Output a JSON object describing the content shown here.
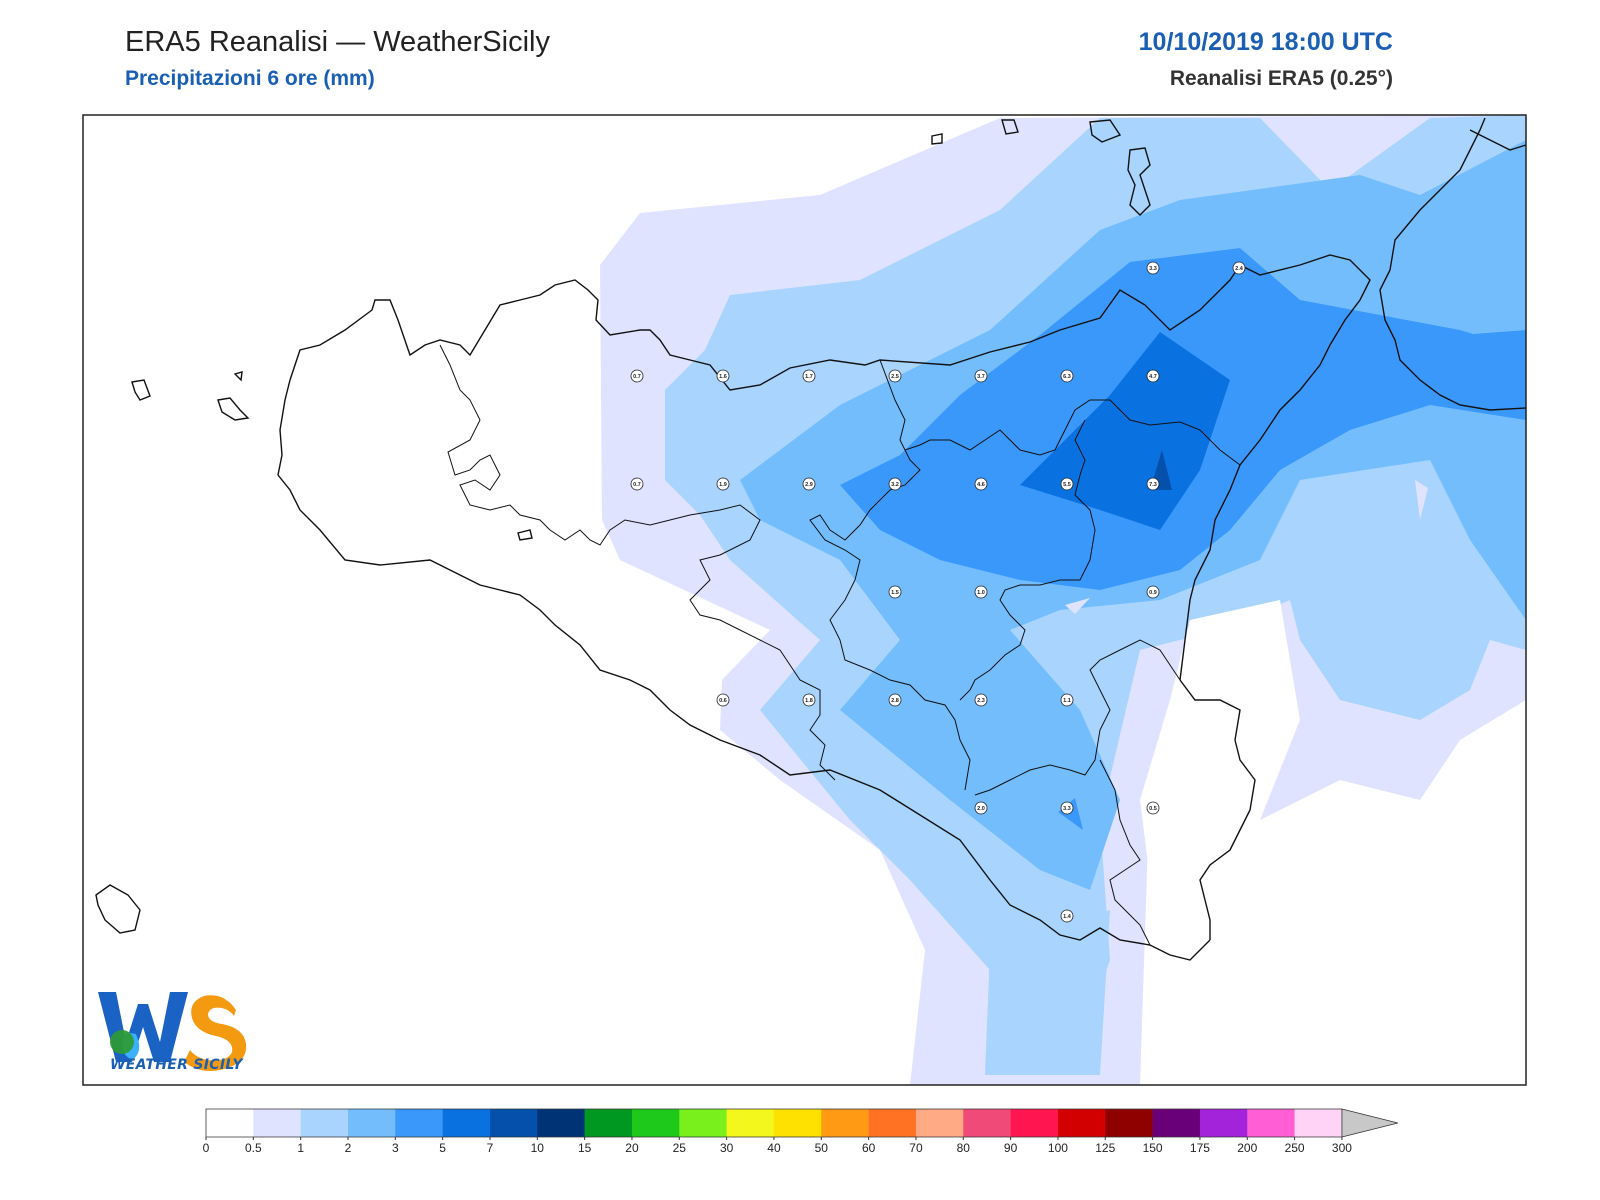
{
  "header": {
    "title": "ERA5 Reanalisi — WeatherSicily",
    "subtitle": "Precipitazioni 6 ore (mm)",
    "datetime": "10/10/2019 18:00 UTC",
    "model": "Reanalisi ERA5 (0.25°)"
  },
  "logo": {
    "text": "WEATHER SICILY"
  },
  "colorbar": {
    "levels": [
      "0",
      "0.5",
      "1",
      "2",
      "3",
      "5",
      "7",
      "10",
      "15",
      "20",
      "25",
      "30",
      "40",
      "50",
      "60",
      "70",
      "80",
      "90",
      "100",
      "125",
      "150",
      "175",
      "200",
      "250",
      "300"
    ],
    "colors": [
      "#ffffff",
      "#dfe3ff",
      "#a9d4fe",
      "#74bdfd",
      "#3a98fb",
      "#0a72e0",
      "#0550aa",
      "#003375",
      "#009821",
      "#1ec91c",
      "#79f01c",
      "#f4f71c",
      "#ffe100",
      "#ff9a15",
      "#ff7224",
      "#ffaa84",
      "#f04a78",
      "#ff1651",
      "#d20000",
      "#8f0000",
      "#6a0079",
      "#a223da",
      "#ff5ed5",
      "#ffd3f5"
    ],
    "extend_color": "#c8c8c8"
  },
  "point_values": [
    {
      "lon": 12.0,
      "lat": 38.75,
      "v": "0.7"
    },
    {
      "lon": 12.5,
      "lat": 38.75,
      "v": "1.6"
    },
    {
      "lon": 13.0,
      "lat": 38.75,
      "v": "1.7"
    },
    {
      "lon": 13.5,
      "lat": 38.75,
      "v": "2.5"
    },
    {
      "lon": 14.0,
      "lat": 38.75,
      "v": "3.7"
    },
    {
      "lon": 14.5,
      "lat": 38.75,
      "v": "6.3"
    },
    {
      "lon": 15.0,
      "lat": 38.75,
      "v": "4.7"
    },
    {
      "lon": 15.0,
      "lat": 39.25,
      "v": "3.3"
    },
    {
      "lon": 15.5,
      "lat": 39.25,
      "v": "2.4"
    },
    {
      "lon": 12.0,
      "lat": 38.25,
      "v": "0.7"
    },
    {
      "lon": 12.5,
      "lat": 38.25,
      "v": "1.9"
    },
    {
      "lon": 13.0,
      "lat": 38.25,
      "v": "2.9"
    },
    {
      "lon": 13.5,
      "lat": 38.25,
      "v": "3.2"
    },
    {
      "lon": 14.0,
      "lat": 38.25,
      "v": "4.6"
    },
    {
      "lon": 14.5,
      "lat": 38.25,
      "v": "5.5"
    },
    {
      "lon": 15.0,
      "lat": 38.25,
      "v": "7.3"
    },
    {
      "lon": 13.5,
      "lat": 37.75,
      "v": "1.5"
    },
    {
      "lon": 14.0,
      "lat": 37.75,
      "v": "1.0"
    },
    {
      "lon": 15.0,
      "lat": 37.75,
      "v": "0.9"
    },
    {
      "lon": 12.5,
      "lat": 37.25,
      "v": "0.6"
    },
    {
      "lon": 13.0,
      "lat": 37.25,
      "v": "1.8"
    },
    {
      "lon": 13.5,
      "lat": 37.25,
      "v": "2.8"
    },
    {
      "lon": 14.0,
      "lat": 37.25,
      "v": "2.3"
    },
    {
      "lon": 14.5,
      "lat": 37.25,
      "v": "1.1"
    },
    {
      "lon": 14.0,
      "lat": 36.75,
      "v": "2.0"
    },
    {
      "lon": 14.5,
      "lat": 36.75,
      "v": "3.3"
    },
    {
      "lon": 15.0,
      "lat": 36.75,
      "v": "0.5"
    },
    {
      "lon": 14.5,
      "lat": 36.25,
      "v": "1.4"
    }
  ]
}
